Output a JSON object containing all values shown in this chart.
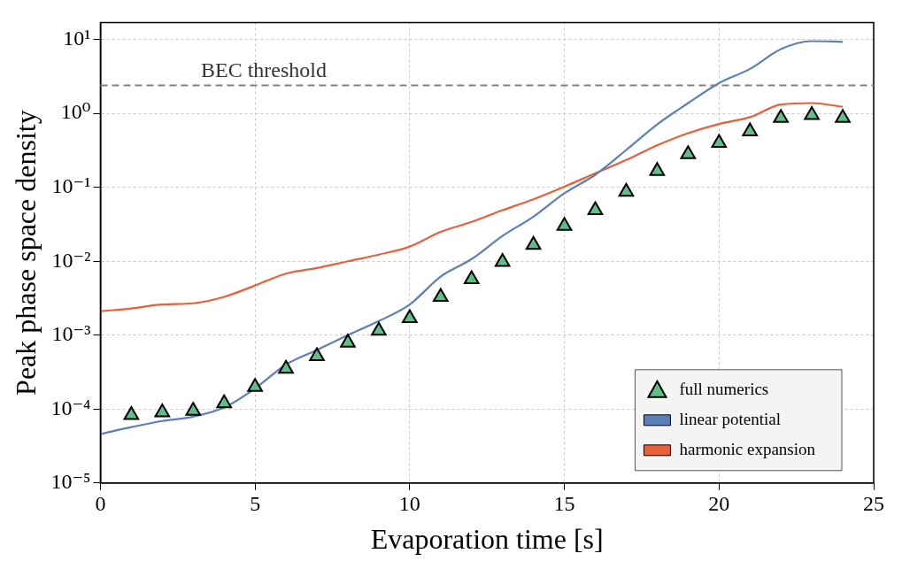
{
  "chart_data": {
    "type": "line",
    "xlabel": "Evaporation time [s]",
    "ylabel": "Peak phase space density",
    "log": "y",
    "grid": true,
    "legend": "bottom right",
    "xlim": [
      0,
      25
    ],
    "xticks": [
      0,
      5,
      10,
      15,
      20,
      25
    ],
    "ylim": [
      1e-05,
      17
    ],
    "yticks": [
      {
        "value": 1e-05,
        "label": "10⁻⁵"
      },
      {
        "value": 0.0001,
        "label": "10⁻⁴"
      },
      {
        "value": 0.001,
        "label": "10⁻³"
      },
      {
        "value": 0.01,
        "label": "10⁻²"
      },
      {
        "value": 0.1,
        "label": "10⁻¹"
      },
      {
        "value": 1,
        "label": "10⁰"
      },
      {
        "value": 10,
        "label": "10¹"
      }
    ],
    "ref_lines": [
      {
        "axis": "y",
        "value": 2.4,
        "label": "BEC threshold",
        "color": "#808080",
        "line_style": "dashed"
      }
    ],
    "series": [
      {
        "name": "full numerics",
        "type": "scatter",
        "marker": "triangle",
        "color": "#5fbf8a",
        "x": [
          1,
          2,
          3,
          4,
          5,
          6,
          7,
          8,
          9,
          10,
          11,
          12,
          13,
          14,
          15,
          16,
          17,
          18,
          19,
          20,
          21,
          22,
          23,
          24
        ],
        "values": [
          8.3e-05,
          9e-05,
          9.5e-05,
          0.00012,
          0.0002,
          0.00035,
          0.00052,
          0.00079,
          0.00115,
          0.0017,
          0.0033,
          0.0057,
          0.0098,
          0.0166,
          0.03,
          0.049,
          0.087,
          0.166,
          0.28,
          0.4,
          0.57,
          0.87,
          0.95,
          0.87
        ]
      },
      {
        "name": "linear potential",
        "marker": "none",
        "color": "#5b7fb8",
        "x": [
          0,
          1,
          2,
          3,
          4,
          5,
          6,
          7,
          8,
          9,
          10,
          11,
          12,
          13,
          14,
          15,
          16,
          17,
          18,
          19,
          20,
          21,
          22,
          23,
          24
        ],
        "values": [
          4.6e-05,
          5.7e-05,
          6.9e-05,
          7.9e-05,
          0.000105,
          0.00019,
          0.0004,
          0.00063,
          0.001,
          0.00155,
          0.0026,
          0.0062,
          0.0107,
          0.022,
          0.04,
          0.083,
          0.148,
          0.32,
          0.71,
          1.38,
          2.57,
          4.0,
          7.4,
          9.5,
          9.3
        ]
      },
      {
        "name": "harmonic expansion",
        "marker": "none",
        "color": "#e8603a",
        "x": [
          0,
          1,
          2,
          3,
          4,
          5,
          6,
          7,
          8,
          9,
          10,
          11,
          12,
          13,
          14,
          15,
          16,
          17,
          18,
          19,
          20,
          21,
          22,
          23,
          24
        ],
        "values": [
          0.0021,
          0.0023,
          0.0026,
          0.0027,
          0.0033,
          0.0047,
          0.0068,
          0.0081,
          0.01,
          0.0123,
          0.0158,
          0.025,
          0.034,
          0.049,
          0.069,
          0.102,
          0.155,
          0.234,
          0.37,
          0.54,
          0.72,
          0.89,
          1.32,
          1.38,
          1.23
        ]
      }
    ]
  }
}
